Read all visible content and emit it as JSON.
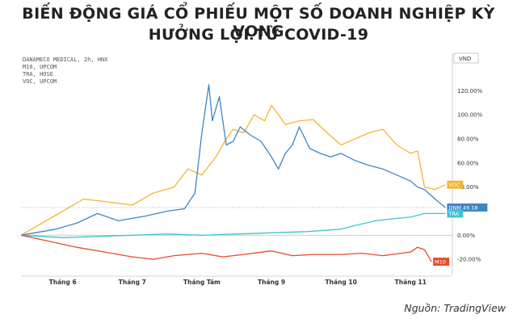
{
  "title_line1": "BIẾN ĐỘNG GIÁ CỔ PHIẾU MỘT SỐ DOANH NGHIỆP KỲ VỌNG",
  "title_line2": "HƯỞNG LỢI TỪ COVID-19",
  "source_label": "Nguồn:",
  "source_name": "TradingView",
  "chart_data": {
    "type": "line",
    "legend_entries": [
      "DANAMECO MEDICAL, 2h, HNX",
      "M10, UPCOM",
      "TRA, HOSE",
      "VOC, UPCOM"
    ],
    "currency": "VND",
    "y_ticks": [
      120,
      100,
      80,
      60,
      40,
      0,
      -20
    ],
    "y_tick_labels": [
      "120.00%",
      "100.00%",
      "80.00%",
      "60.00%",
      "40.00%",
      "0.00%",
      "-20.00%"
    ],
    "ylim": [
      -30,
      135
    ],
    "y_unit": "%",
    "x_ticks": [
      {
        "label": "Tháng 6",
        "x": 1
      },
      {
        "label": "Tháng 7",
        "x": 2
      },
      {
        "label": "Tháng Tám",
        "x": 3
      },
      {
        "label": "Tháng 9",
        "x": 4
      },
      {
        "label": "Tháng 10",
        "x": 5
      },
      {
        "label": "Tháng 11",
        "x": 6
      }
    ],
    "xlim": [
      0.4,
      6.6
    ],
    "grid": false,
    "series": [
      {
        "name": "DNM",
        "color": "#3f86c4",
        "end_label": "DNM",
        "end_value_label": "49.18",
        "x": [
          0.4,
          0.6,
          0.9,
          1.2,
          1.5,
          1.8,
          2.2,
          2.5,
          2.75,
          2.9,
          3.0,
          3.1,
          3.15,
          3.25,
          3.35,
          3.45,
          3.55,
          3.7,
          3.85,
          4.0,
          4.1,
          4.2,
          4.3,
          4.4,
          4.55,
          4.7,
          4.85,
          5.0,
          5.2,
          5.4,
          5.6,
          5.8,
          6.0,
          6.1,
          6.2,
          6.35,
          6.5
        ],
        "y": [
          0,
          2,
          5,
          10,
          18,
          12,
          16,
          20,
          22,
          35,
          85,
          125,
          95,
          115,
          75,
          78,
          90,
          83,
          78,
          65,
          55,
          68,
          75,
          90,
          72,
          68,
          65,
          68,
          62,
          58,
          55,
          50,
          45,
          40,
          38,
          30,
          23
        ]
      },
      {
        "name": "VOC",
        "color": "#f2b632",
        "end_label": "VOC",
        "x": [
          0.4,
          0.7,
          1.0,
          1.3,
          1.6,
          2.0,
          2.3,
          2.6,
          2.8,
          3.0,
          3.2,
          3.35,
          3.45,
          3.6,
          3.75,
          3.9,
          4.0,
          4.2,
          4.4,
          4.6,
          4.8,
          5.0,
          5.2,
          5.4,
          5.6,
          5.8,
          6.0,
          6.1,
          6.2,
          6.35,
          6.5
        ],
        "y": [
          0,
          10,
          20,
          30,
          28,
          25,
          35,
          40,
          55,
          50,
          65,
          80,
          88,
          85,
          100,
          95,
          108,
          92,
          95,
          96,
          85,
          75,
          80,
          85,
          88,
          75,
          68,
          70,
          40,
          38,
          42
        ]
      },
      {
        "name": "TRA",
        "color": "#40c3d2",
        "end_label": "TRA",
        "x": [
          0.4,
          1.0,
          1.5,
          2.0,
          2.5,
          3.0,
          3.5,
          4.0,
          4.5,
          5.0,
          5.2,
          5.5,
          5.8,
          6.0,
          6.2,
          6.5
        ],
        "y": [
          0,
          -2,
          -1,
          0,
          1,
          0,
          1,
          2,
          3,
          5,
          8,
          12,
          14,
          15,
          18,
          18
        ]
      },
      {
        "name": "M10",
        "color": "#e64a2e",
        "end_label": "M10",
        "x": [
          0.4,
          0.8,
          1.2,
          1.6,
          2.0,
          2.3,
          2.6,
          3.0,
          3.3,
          3.6,
          4.0,
          4.3,
          4.6,
          5.0,
          5.3,
          5.6,
          6.0,
          6.1,
          6.2,
          6.3
        ],
        "y": [
          0,
          -5,
          -10,
          -14,
          -18,
          -20,
          -17,
          -15,
          -18,
          -16,
          -13,
          -17,
          -16,
          -16,
          -15,
          -17,
          -14,
          -10,
          -12,
          -22
        ]
      }
    ],
    "reference_line_value": 23
  }
}
